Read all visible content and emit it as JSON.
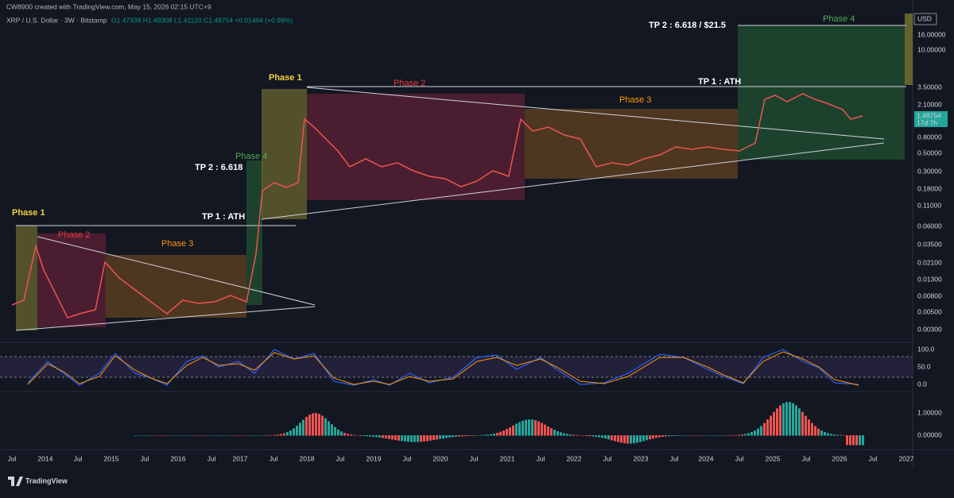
{
  "header": {
    "author": "CW8900 created with TradingView.com, May 15, 2026 02:15 UTC+9",
    "symbol": "XRP / U.S. Dollar · 3W · Bitstamp",
    "ohlc": "O1.47338 H1.49308 L1.41120 C1.48754 +0.01464 (+0.99%)",
    "currency": "USD"
  },
  "price_tag": {
    "price": "1.48754",
    "countdown": "17d 7h"
  },
  "price_axis": [
    "16.00000",
    "10.00000",
    "3.50000",
    "2.10000",
    "0.80000",
    "0.50000",
    "0.30000",
    "0.18000",
    "0.11000",
    "0.06000",
    "0.03500",
    "0.02100",
    "0.01300",
    "0.00800",
    "0.00500",
    "0.00300"
  ],
  "rsi_axis": [
    "100.0",
    "50.0",
    "0.0"
  ],
  "macd_axis": [
    "1.00000",
    "0.00000"
  ],
  "time_axis": [
    "Jul",
    "2014",
    "Jul",
    "2015",
    "Jul",
    "2016",
    "Jul",
    "2017",
    "Jul",
    "2018",
    "Jul",
    "2019",
    "Jul",
    "2020",
    "Jul",
    "2021",
    "Jul",
    "2022",
    "Jul",
    "2023",
    "Jul",
    "2024",
    "Jul",
    "2025",
    "Jul",
    "2026",
    "Jul",
    "2027"
  ],
  "annotations": [
    {
      "label": "Phase 1",
      "color": "#f0d23c"
    },
    {
      "label": "Phase 2",
      "color": "#f23645"
    },
    {
      "label": "Phase 3",
      "color": "#ff9800"
    },
    {
      "label": "Phase 4",
      "color": "#4caf50"
    },
    {
      "label": "TP 2 : 6.618",
      "color": "#ffffff"
    },
    {
      "label": "TP 1 : ATH",
      "color": "#ffffff"
    },
    {
      "label": "Phase 1",
      "color": "#f0d23c"
    },
    {
      "label": "Phase 2",
      "color": "#f23645"
    },
    {
      "label": "Phase 3",
      "color": "#ff9800"
    },
    {
      "label": "TP 1 : ATH",
      "color": "#ffffff"
    },
    {
      "label": "TP 2 : 6.618 / $21.5",
      "color": "#ffffff"
    },
    {
      "label": "Phase 4",
      "color": "#4caf50"
    }
  ],
  "footer": {
    "brand": "TradingView"
  }
}
